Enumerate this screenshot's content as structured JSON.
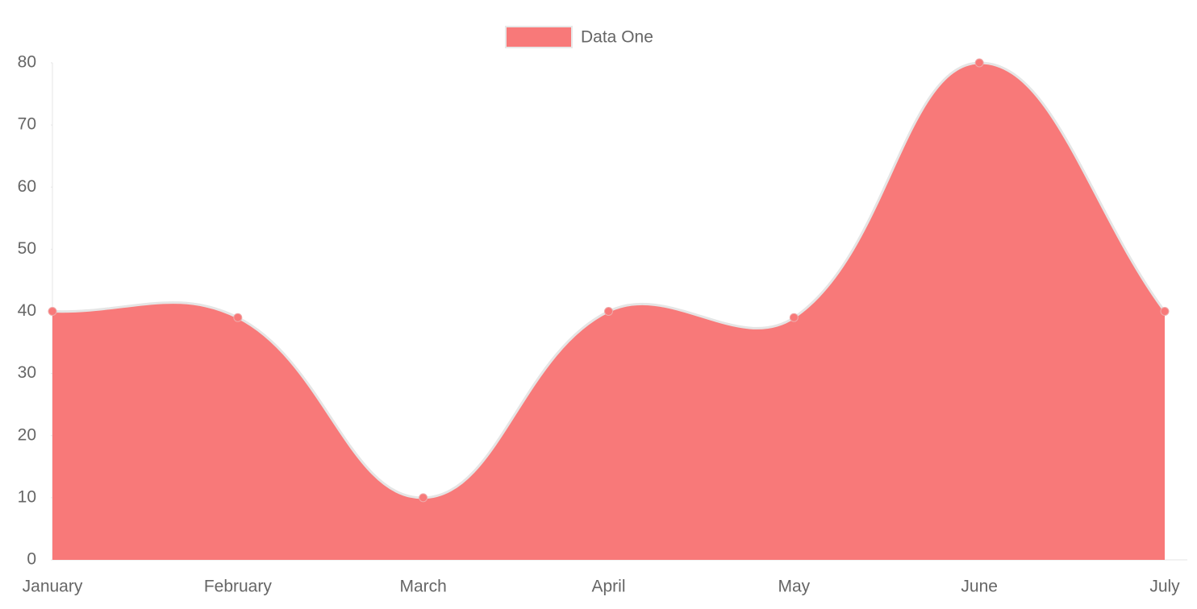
{
  "chart_data": {
    "type": "area",
    "legend": "Data One",
    "categories": [
      "January",
      "February",
      "March",
      "April",
      "May",
      "June",
      "July"
    ],
    "series": [
      {
        "name": "Data One",
        "color": "#f87979",
        "values": [
          40,
          39,
          10,
          40,
          39,
          80,
          40
        ]
      }
    ],
    "ylim": [
      0,
      80
    ],
    "yticks": [
      0,
      10,
      20,
      30,
      40,
      50,
      60,
      70,
      80
    ],
    "grid": false,
    "legend_position": "top"
  }
}
